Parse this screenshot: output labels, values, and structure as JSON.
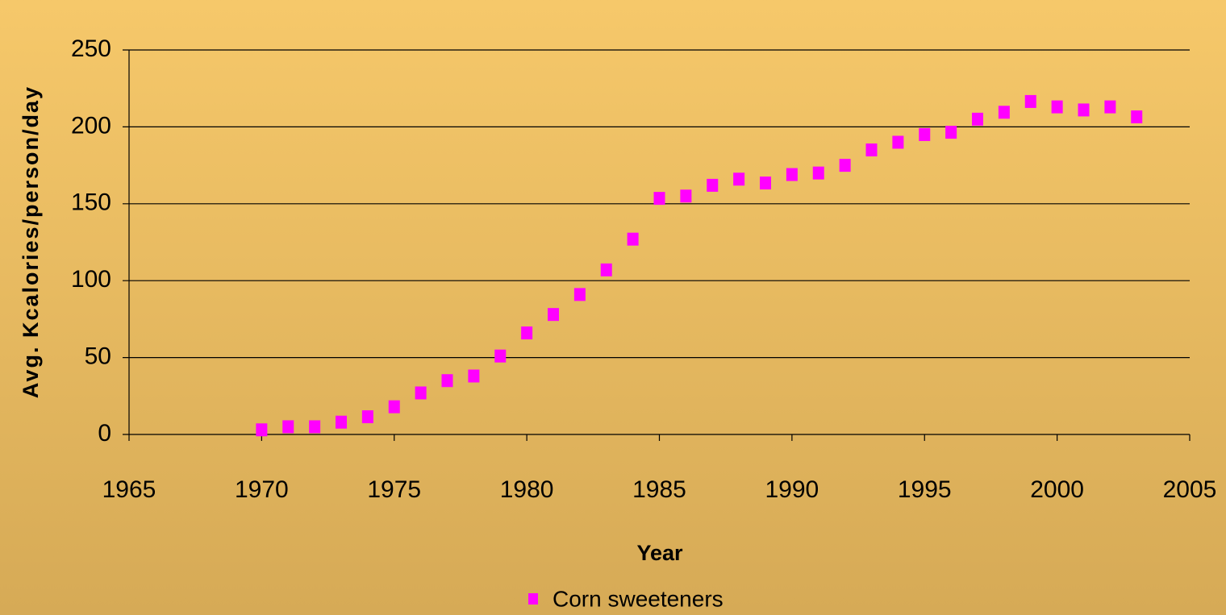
{
  "chart_data": {
    "type": "scatter",
    "x_label": "Year",
    "y_label": "Avg. Kcalories/person/day",
    "xlim": [
      1965,
      2005
    ],
    "xticks": [
      1965,
      1970,
      1975,
      1980,
      1985,
      1990,
      1995,
      2000,
      2005
    ],
    "ylim": [
      0,
      250
    ],
    "yticks": [
      0,
      50,
      100,
      150,
      200,
      250
    ],
    "grid": true,
    "legend": "bottom",
    "series": [
      {
        "name": "Corn sweeteners",
        "color": "#ff00ff",
        "x": [
          1970,
          1971,
          1972,
          1973,
          1974,
          1975,
          1976,
          1977,
          1978,
          1979,
          1980,
          1981,
          1982,
          1983,
          1984,
          1985,
          1986,
          1987,
          1988,
          1989,
          1990,
          1991,
          1992,
          1993,
          1994,
          1995,
          1996,
          1997,
          1998,
          1999,
          2000,
          2001,
          2002,
          2003
        ],
        "values": [
          3,
          5,
          5,
          8,
          11.5,
          18,
          27,
          35,
          38,
          51,
          66,
          78,
          91,
          107,
          127,
          153.5,
          155,
          162,
          166,
          163.5,
          169,
          170,
          175,
          185,
          190,
          195,
          196.5,
          205,
          209.5,
          216.5,
          213,
          211,
          213,
          206.5
        ]
      }
    ]
  }
}
